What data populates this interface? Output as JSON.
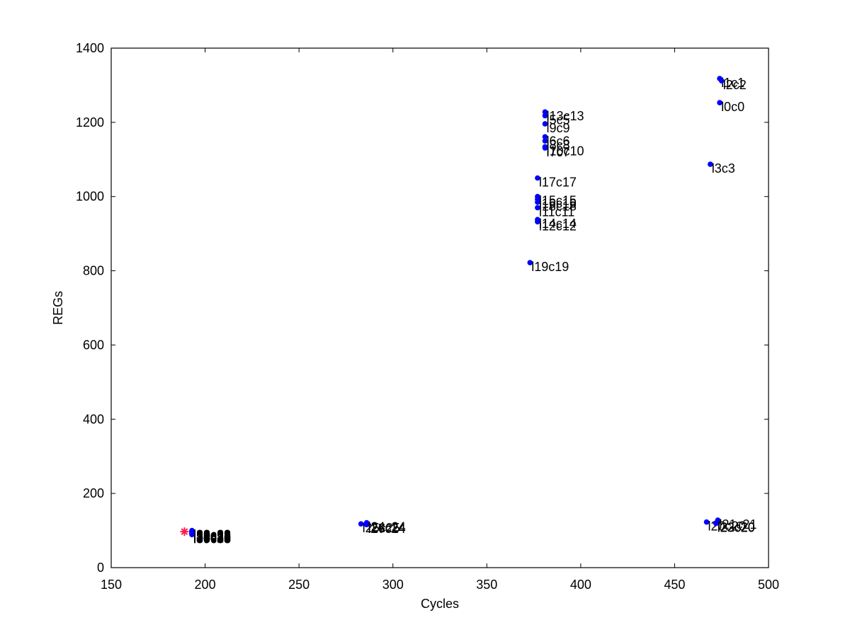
{
  "chart_data": {
    "type": "scatter",
    "title": "",
    "xlabel": "Cycles",
    "ylabel": "REGs",
    "xlim": [
      150,
      500
    ],
    "ylim": [
      0,
      1400
    ],
    "x_ticks": [
      150,
      200,
      250,
      300,
      350,
      400,
      450,
      500
    ],
    "y_ticks": [
      0,
      200,
      400,
      600,
      800,
      1000,
      1200,
      1400
    ],
    "grid": false,
    "colors": {
      "axis": "#000000",
      "point": "#0000ff",
      "highlight": "#ff1a4a"
    },
    "series": [
      {
        "marker": "dot",
        "color": "#0000ff",
        "points": [
          {
            "x": 474,
            "y": 1318,
            "label": "l1c1"
          },
          {
            "x": 475,
            "y": 1312,
            "label": "l2c2"
          },
          {
            "x": 474,
            "y": 1253,
            "label": "l0c0"
          },
          {
            "x": 469,
            "y": 1087,
            "label": "l3c3"
          },
          {
            "x": 381,
            "y": 1228,
            "label": "l13c13"
          },
          {
            "x": 381,
            "y": 1218,
            "label": "l5c5"
          },
          {
            "x": 381,
            "y": 1196,
            "label": "l9c9"
          },
          {
            "x": 381,
            "y": 1161,
            "label": "l6c6"
          },
          {
            "x": 381,
            "y": 1150,
            "label": "l8c8"
          },
          {
            "x": 381,
            "y": 1134,
            "label": "l10c10"
          },
          {
            "x": 381,
            "y": 1131,
            "label": "l7c7"
          },
          {
            "x": 377,
            "y": 1050,
            "label": "l17c17"
          },
          {
            "x": 377,
            "y": 1000,
            "label": "l15c15"
          },
          {
            "x": 377,
            "y": 993,
            "label": "l16c16"
          },
          {
            "x": 377,
            "y": 985,
            "label": "l18c18"
          },
          {
            "x": 377,
            "y": 970,
            "label": "l11c11"
          },
          {
            "x": 377,
            "y": 938,
            "label": "l14c14"
          },
          {
            "x": 377,
            "y": 932,
            "label": "l12c12"
          },
          {
            "x": 373,
            "y": 822,
            "label": "l19c19"
          },
          {
            "x": 473,
            "y": 128,
            "label": "l21c21"
          },
          {
            "x": 467,
            "y": 123,
            "label": "l20c20"
          },
          {
            "x": 472,
            "y": 120,
            "label": "l22c20"
          },
          {
            "x": 472,
            "y": 119,
            "label": "l23c20"
          },
          {
            "x": 286,
            "y": 121,
            "label": "l24c24"
          },
          {
            "x": 283,
            "y": 118,
            "label": "l25c25"
          },
          {
            "x": 286,
            "y": 117,
            "label": "l26c24"
          },
          {
            "x": 286,
            "y": 116,
            "label": "l27c24"
          },
          {
            "x": 193,
            "y": 100,
            "label": "l28c28"
          },
          {
            "x": 193,
            "y": 99,
            "label": "l29c29"
          },
          {
            "x": 193,
            "y": 98,
            "label": "l30c28"
          },
          {
            "x": 193,
            "y": 97,
            "label": "l31c28"
          },
          {
            "x": 193,
            "y": 96,
            "label": "l32c28"
          },
          {
            "x": 193,
            "y": 95,
            "label": "l33c33"
          },
          {
            "x": 193,
            "y": 94,
            "label": "l34c28"
          },
          {
            "x": 193,
            "y": 93,
            "label": "l35c28"
          },
          {
            "x": 193,
            "y": 92,
            "label": "l36c36"
          },
          {
            "x": 193,
            "y": 91,
            "label": "l37c28"
          },
          {
            "x": 193,
            "y": 90,
            "label": "l38c38"
          },
          {
            "x": 193,
            "y": 89,
            "label": "l39c38"
          }
        ]
      },
      {
        "marker": "star",
        "color": "#ff1a4a",
        "points": [
          {
            "x": 189,
            "y": 97,
            "label": ""
          }
        ]
      }
    ]
  }
}
